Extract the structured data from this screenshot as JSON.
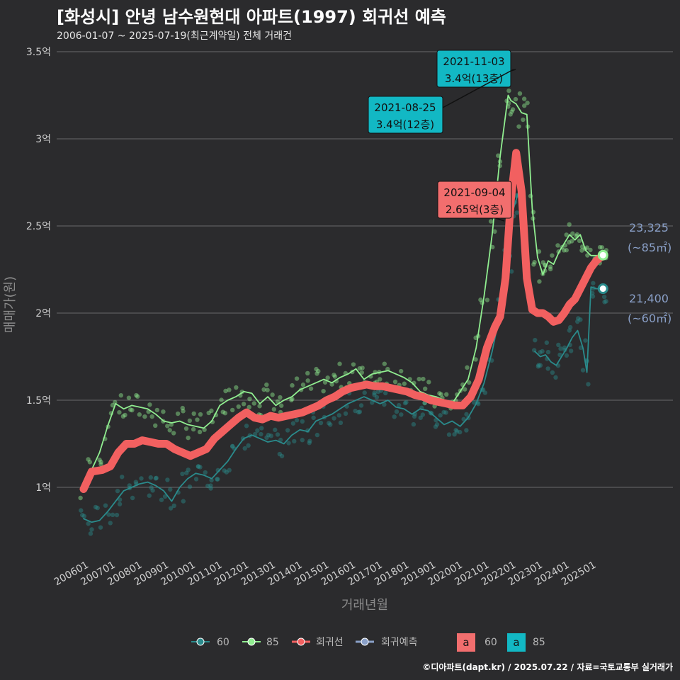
{
  "header": {
    "title": "[화성시] 안녕 남수원현대 아파트(1997) 회귀선 예측",
    "subtitle": "2006-01-07 ~ 2025-07-19(최근계약일) 전체 거래건"
  },
  "caption": "©디아파트(dapt.kr) / 2025.07.22 / 자료=국토교통부 실거래가",
  "colors": {
    "background": "#2b2b2d",
    "series_60": "#2a8b8c",
    "series_85": "#90ee90",
    "regression": "#f26060",
    "prediction": "#8aa0c8",
    "grid": "#6a6a6a",
    "callout_teal": "#12b8c4",
    "callout_red": "#f26e6e"
  },
  "chart_data": {
    "type": "line",
    "xlabel": "거래년월",
    "ylabel": "매매가(원)",
    "ylim": [
      0.6,
      3.5
    ],
    "y_ticks": [
      {
        "value": 1.0,
        "label": "1억"
      },
      {
        "value": 1.5,
        "label": "1.5억"
      },
      {
        "value": 2.0,
        "label": "2억"
      },
      {
        "value": 2.5,
        "label": "2.5억"
      },
      {
        "value": 3.0,
        "label": "3억"
      },
      {
        "value": 3.5,
        "label": "3.5억"
      }
    ],
    "x_range": [
      2006.0,
      2025.6
    ],
    "x_ticks": [
      "200601",
      "200701",
      "200801",
      "200901",
      "201001",
      "201101",
      "201201",
      "201301",
      "201401",
      "201501",
      "201601",
      "201701",
      "201801",
      "201901",
      "202001",
      "202101",
      "202201",
      "202301",
      "202401",
      "202501"
    ],
    "series": [
      {
        "name": "85",
        "values_x": [
          2006.0,
          2006.3,
          2006.6,
          2006.9,
          2007.2,
          2007.5,
          2007.8,
          2008.1,
          2008.4,
          2008.7,
          2009.0,
          2009.3,
          2009.6,
          2009.9,
          2010.2,
          2010.5,
          2010.8,
          2011.1,
          2011.4,
          2011.7,
          2012.0,
          2012.3,
          2012.6,
          2012.9,
          2013.2,
          2013.5,
          2013.8,
          2014.1,
          2014.4,
          2014.7,
          2015.0,
          2015.3,
          2015.6,
          2015.9,
          2016.2,
          2016.5,
          2016.8,
          2017.1,
          2017.4,
          2017.7,
          2018.0,
          2018.3,
          2018.6,
          2018.9,
          2019.2,
          2019.5,
          2019.8,
          2020.1,
          2020.4,
          2020.7,
          2021.0,
          2021.3,
          2021.6,
          2021.9,
          2022.0,
          2022.2,
          2022.4,
          2022.6,
          2022.8,
          2023.0,
          2023.2,
          2023.4,
          2023.6,
          2023.8,
          2024.0,
          2024.2,
          2024.4,
          2024.6,
          2024.8,
          2025.0,
          2025.2,
          2025.45
        ],
        "values": [
          0.98,
          1.1,
          1.2,
          1.35,
          1.48,
          1.45,
          1.47,
          1.46,
          1.45,
          1.42,
          1.38,
          1.37,
          1.38,
          1.36,
          1.35,
          1.34,
          1.38,
          1.47,
          1.5,
          1.52,
          1.55,
          1.54,
          1.48,
          1.52,
          1.47,
          1.5,
          1.52,
          1.56,
          1.58,
          1.6,
          1.62,
          1.6,
          1.63,
          1.65,
          1.68,
          1.62,
          1.65,
          1.66,
          1.67,
          1.65,
          1.63,
          1.6,
          1.55,
          1.53,
          1.52,
          1.5,
          1.48,
          1.55,
          1.62,
          1.8,
          2.1,
          2.45,
          2.9,
          3.25,
          3.22,
          3.2,
          3.15,
          3.14,
          2.6,
          2.32,
          2.22,
          2.3,
          2.28,
          2.35,
          2.4,
          2.45,
          2.42,
          2.45,
          2.36,
          2.33,
          2.33,
          2.33
        ]
      },
      {
        "name": "60",
        "values_x": [
          2006.0,
          2006.3,
          2006.6,
          2006.9,
          2007.2,
          2007.5,
          2007.8,
          2008.1,
          2008.4,
          2008.7,
          2009.0,
          2009.3,
          2009.6,
          2009.9,
          2010.2,
          2010.5,
          2010.8,
          2011.1,
          2011.4,
          2011.7,
          2012.0,
          2012.3,
          2012.6,
          2012.9,
          2013.2,
          2013.5,
          2013.8,
          2014.1,
          2014.4,
          2014.7,
          2015.0,
          2015.3,
          2015.6,
          2015.9,
          2016.2,
          2016.5,
          2016.8,
          2017.1,
          2017.4,
          2017.7,
          2018.0,
          2018.3,
          2018.6,
          2018.9,
          2019.2,
          2019.5,
          2019.8,
          2020.1,
          2020.4,
          2020.7,
          2021.0,
          2021.3,
          2021.6,
          2021.9,
          2022.1,
          2022.3
        ],
        "values": [
          0.82,
          0.8,
          0.81,
          0.86,
          0.92,
          0.98,
          1.0,
          1.02,
          1.03,
          1.01,
          0.98,
          0.92,
          1.0,
          1.05,
          1.08,
          1.07,
          1.05,
          1.1,
          1.15,
          1.22,
          1.28,
          1.3,
          1.28,
          1.26,
          1.27,
          1.25,
          1.3,
          1.33,
          1.32,
          1.38,
          1.4,
          1.42,
          1.45,
          1.48,
          1.5,
          1.52,
          1.5,
          1.48,
          1.5,
          1.46,
          1.45,
          1.42,
          1.45,
          1.44,
          1.4,
          1.36,
          1.38,
          1.35,
          1.4,
          1.48,
          1.6,
          1.78,
          2.0,
          2.3,
          2.6,
          2.7
        ]
      },
      {
        "name": "60",
        "values_x": [
          2022.9,
          2023.1,
          2023.3,
          2023.5,
          2023.7,
          2023.9,
          2024.1,
          2024.3,
          2024.5,
          2024.7,
          2024.85,
          2025.0,
          2025.2,
          2025.45
        ],
        "values": [
          1.78,
          1.75,
          1.76,
          1.72,
          1.7,
          1.75,
          1.8,
          1.86,
          1.9,
          1.8,
          1.66,
          2.15,
          2.14,
          2.14
        ]
      },
      {
        "name": "회귀선",
        "values_x": [
          2006.0,
          2006.3,
          2006.7,
          2007.0,
          2007.3,
          2007.6,
          2007.9,
          2008.2,
          2008.5,
          2008.8,
          2009.1,
          2009.4,
          2009.7,
          2010.0,
          2010.3,
          2010.6,
          2010.9,
          2011.2,
          2011.5,
          2011.8,
          2012.1,
          2012.4,
          2012.7,
          2013.0,
          2013.3,
          2013.6,
          2013.9,
          2014.2,
          2014.5,
          2014.8,
          2015.1,
          2015.4,
          2015.7,
          2016.0,
          2016.3,
          2016.6,
          2016.9,
          2017.2,
          2017.5,
          2017.8,
          2018.1,
          2018.4,
          2018.7,
          2019.0,
          2019.3,
          2019.6,
          2019.9,
          2020.2,
          2020.5,
          2020.8,
          2021.1,
          2021.4,
          2021.6,
          2021.8,
          2022.0,
          2022.2,
          2022.4,
          2022.6,
          2022.8,
          2023.0,
          2023.2,
          2023.4,
          2023.6,
          2023.8,
          2024.0,
          2024.2,
          2024.4,
          2024.6,
          2024.8,
          2025.0,
          2025.2,
          2025.45
        ],
        "values": [
          0.99,
          1.09,
          1.1,
          1.12,
          1.2,
          1.25,
          1.25,
          1.27,
          1.26,
          1.25,
          1.25,
          1.22,
          1.2,
          1.18,
          1.2,
          1.22,
          1.28,
          1.32,
          1.36,
          1.4,
          1.43,
          1.4,
          1.39,
          1.41,
          1.4,
          1.41,
          1.42,
          1.43,
          1.45,
          1.47,
          1.5,
          1.52,
          1.55,
          1.57,
          1.58,
          1.59,
          1.58,
          1.58,
          1.57,
          1.56,
          1.55,
          1.53,
          1.52,
          1.5,
          1.49,
          1.48,
          1.47,
          1.47,
          1.52,
          1.62,
          1.8,
          1.92,
          1.98,
          2.2,
          2.65,
          2.92,
          2.7,
          2.2,
          2.02,
          2.0,
          2.0,
          1.98,
          1.95,
          1.96,
          2.0,
          2.05,
          2.08,
          2.14,
          2.2,
          2.26,
          2.3,
          2.33
        ]
      }
    ],
    "prediction_points": [
      {
        "name": "85",
        "x": 2025.45,
        "y": 2.3325
      },
      {
        "name": "60",
        "x": 2025.45,
        "y": 2.14
      }
    ],
    "annotations": [
      {
        "date": "2021-11-03",
        "price": "3.4억(13층)",
        "color": "teal",
        "x": 2021.84,
        "y": 3.4
      },
      {
        "date": "2021-08-25",
        "price": "3.4억(12층)",
        "color": "teal",
        "x": 2021.65,
        "y": 3.4
      },
      {
        "date": "2021-09-04",
        "price": "2.65억(3층)",
        "color": "red",
        "x": 2021.68,
        "y": 2.65
      }
    ],
    "end_labels": [
      {
        "value": "23,325",
        "unit": "(~85㎡)"
      },
      {
        "value": "21,400",
        "unit": "(~60㎡)"
      }
    ],
    "legend": [
      {
        "label": "60",
        "color": "#2a8b8c"
      },
      {
        "label": "85",
        "color": "#90ee90"
      },
      {
        "label": "회귀선",
        "color": "#f26060"
      },
      {
        "label": "회귀예측",
        "color": "#8aa0c8"
      }
    ],
    "legend_boxes": [
      {
        "glyph": "a",
        "label": "60",
        "color": "#f26e6e"
      },
      {
        "glyph": "a",
        "label": "85",
        "color": "#12b8c4"
      }
    ]
  }
}
